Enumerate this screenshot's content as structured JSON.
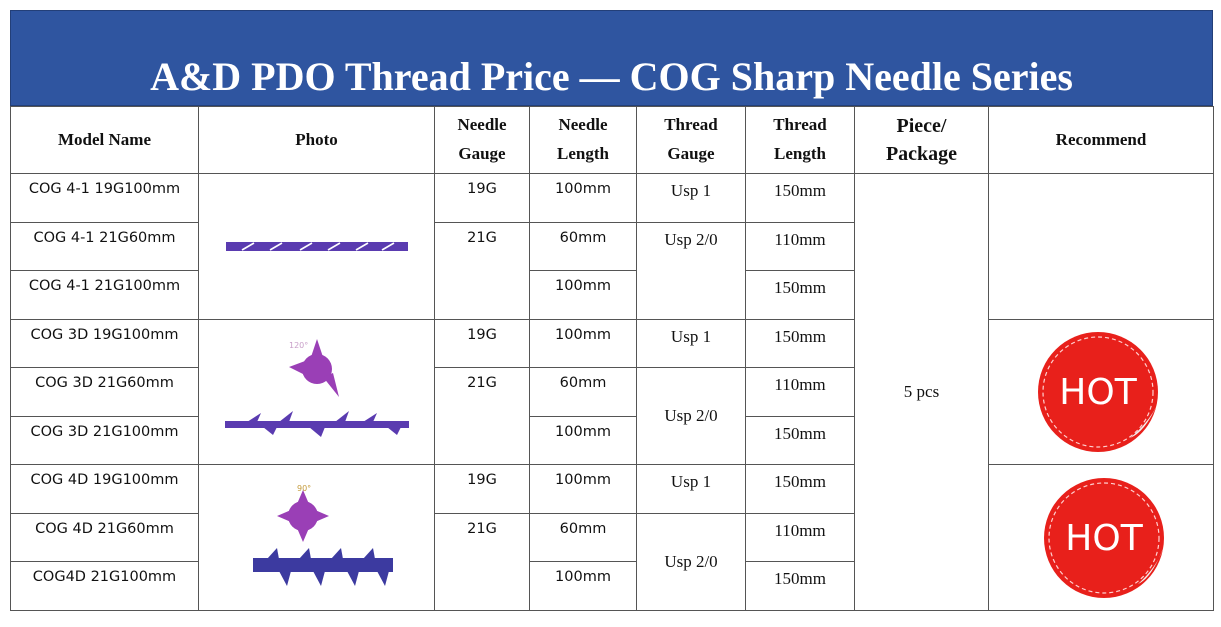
{
  "title": "A&D PDO Thread Price — COG Sharp Needle Series",
  "headers": {
    "model": "Model Name",
    "photo": "Photo",
    "needle_gauge": [
      "Needle",
      "Gauge"
    ],
    "needle_length": [
      "Needle",
      "Length"
    ],
    "thread_gauge": [
      "Thread",
      "Gauge"
    ],
    "thread_length": [
      "Thread",
      "Length"
    ],
    "piece_package": [
      "Piece/",
      "Package"
    ],
    "recommend": "Recommend"
  },
  "groups": [
    {
      "rows": [
        {
          "model": "COG 4-1 19G100mm",
          "needle_gauge": "19G",
          "needle_length": "100mm",
          "thread_gauge": "Usp 1",
          "thread_length": "150mm"
        },
        {
          "model": "COG 4-1 21G60mm",
          "needle_gauge": "21G",
          "needle_length": "60mm",
          "thread_gauge": "Usp 2/0",
          "thread_length": "110mm"
        },
        {
          "model": "COG 4-1 21G100mm",
          "needle_length": "100mm",
          "thread_length": "150mm"
        }
      ],
      "photo_icon": "cog-4-1-thread-image",
      "recommend": ""
    },
    {
      "rows": [
        {
          "model": "COG 3D 19G100mm",
          "needle_gauge": "19G",
          "needle_length": "100mm",
          "thread_gauge": "Usp 1",
          "thread_length": "150mm"
        },
        {
          "model": "COG 3D 21G60mm",
          "needle_gauge": "21G",
          "needle_length": "60mm",
          "thread_gauge": "Usp 2/0",
          "thread_length": "110mm"
        },
        {
          "model": "COG 3D 21G100mm",
          "needle_length": "100mm",
          "thread_length": "150mm"
        }
      ],
      "photo_icon": "cog-3d-thread-image",
      "photo_annotation": "120°",
      "recommend": "HOT"
    },
    {
      "rows": [
        {
          "model": "COG 4D 19G100mm",
          "needle_gauge": "19G",
          "needle_length": "100mm",
          "thread_gauge": "Usp 1",
          "thread_length": "150mm"
        },
        {
          "model": "COG 4D 21G60mm",
          "needle_gauge": "21G",
          "needle_length": "60mm",
          "thread_gauge": "Usp 2/0",
          "thread_length": "110mm"
        },
        {
          "model": "COG4D 21G100mm",
          "needle_length": "100mm",
          "thread_length": "150mm"
        }
      ],
      "photo_icon": "cog-4d-thread-image",
      "photo_annotation": "90°",
      "recommend": "HOT"
    }
  ],
  "piece_package_value": "5 pcs",
  "colors": {
    "title_bg": "#2f55a0",
    "thread_purple": "#5a3bb0",
    "cog_magenta": "#9a3fb6",
    "hot_red": "#e8201b"
  }
}
